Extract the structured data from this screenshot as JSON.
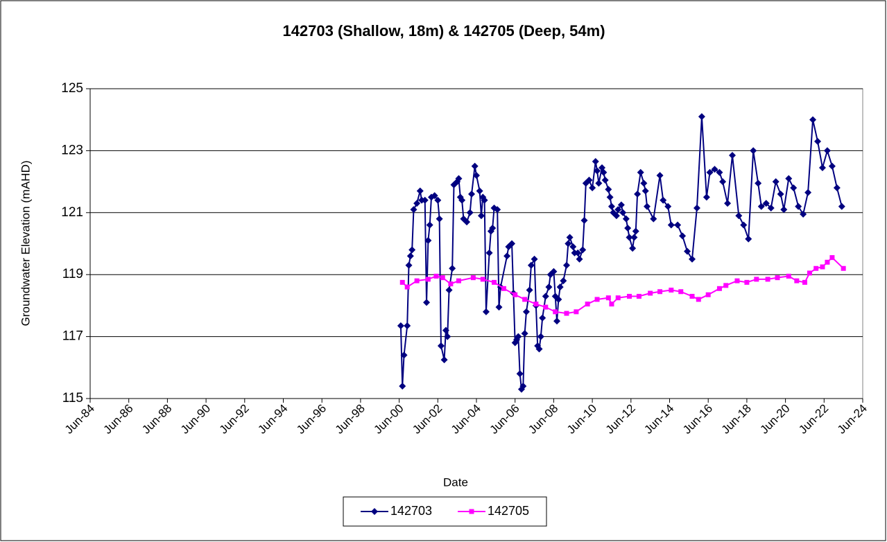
{
  "chart_data": {
    "type": "line",
    "title": "142703 (Shallow, 18m) & 142705 (Deep, 54m)",
    "x_label": "Date",
    "y_label": "Groundwater Elevation (mAHD)",
    "xlim": [
      "1984-06",
      "2024-06"
    ],
    "xticks": [
      {
        "value": "1984-06",
        "label": "Jun-84"
      },
      {
        "value": "1986-06",
        "label": "Jun-86"
      },
      {
        "value": "1988-06",
        "label": "Jun-88"
      },
      {
        "value": "1990-06",
        "label": "Jun-90"
      },
      {
        "value": "1992-06",
        "label": "Jun-92"
      },
      {
        "value": "1994-06",
        "label": "Jun-94"
      },
      {
        "value": "1996-06",
        "label": "Jun-96"
      },
      {
        "value": "1998-06",
        "label": "Jun-98"
      },
      {
        "value": "2000-06",
        "label": "Jun-00"
      },
      {
        "value": "2002-06",
        "label": "Jun-02"
      },
      {
        "value": "2004-06",
        "label": "Jun-04"
      },
      {
        "value": "2006-06",
        "label": "Jun-06"
      },
      {
        "value": "2008-06",
        "label": "Jun-08"
      },
      {
        "value": "2010-06",
        "label": "Jun-10"
      },
      {
        "value": "2012-06",
        "label": "Jun-12"
      },
      {
        "value": "2014-06",
        "label": "Jun-14"
      },
      {
        "value": "2016-06",
        "label": "Jun-16"
      },
      {
        "value": "2018-06",
        "label": "Jun-18"
      },
      {
        "value": "2020-06",
        "label": "Jun-20"
      },
      {
        "value": "2022-06",
        "label": "Jun-22"
      },
      {
        "value": "2024-06",
        "label": "Jun-24"
      }
    ],
    "ylim": [
      115,
      125
    ],
    "yticks": [
      115,
      117,
      119,
      121,
      123,
      125
    ],
    "grid": true,
    "legend": "bottom",
    "series": [
      {
        "name": "142703",
        "color": "#000080",
        "marker": "diamond",
        "x": [
          "2000-07",
          "2000-08",
          "2000-09",
          "2000-11",
          "2000-12",
          "2001-01",
          "2001-02",
          "2001-03",
          "2001-05",
          "2001-07",
          "2001-08",
          "2001-10",
          "2001-11",
          "2001-12",
          "2002-01",
          "2002-02",
          "2002-04",
          "2002-06",
          "2002-07",
          "2002-08",
          "2002-10",
          "2002-11",
          "2002-12",
          "2003-01",
          "2003-03",
          "2003-04",
          "2003-06",
          "2003-07",
          "2003-08",
          "2003-09",
          "2003-10",
          "2003-12",
          "2004-02",
          "2004-03",
          "2004-05",
          "2004-06",
          "2004-08",
          "2004-09",
          "2004-10",
          "2004-11",
          "2004-12",
          "2005-02",
          "2005-03",
          "2005-04",
          "2005-05",
          "2005-07",
          "2005-08",
          "2005-09",
          "2006-01",
          "2006-02",
          "2006-04",
          "2006-05",
          "2006-06",
          "2006-07",
          "2006-08",
          "2006-09",
          "2006-10",
          "2006-11",
          "2006-12",
          "2007-01",
          "2007-03",
          "2007-04",
          "2007-06",
          "2007-07",
          "2007-08",
          "2007-09",
          "2007-10",
          "2007-11",
          "2008-01",
          "2008-03",
          "2008-04",
          "2008-06",
          "2008-07",
          "2008-08",
          "2008-09",
          "2008-10",
          "2008-12",
          "2009-02",
          "2009-03",
          "2009-04",
          "2009-06",
          "2009-07",
          "2009-09",
          "2009-10",
          "2009-12",
          "2010-01",
          "2010-02",
          "2010-04",
          "2010-06",
          "2010-08",
          "2010-09",
          "2010-10",
          "2010-12",
          "2011-01",
          "2011-02",
          "2011-04",
          "2011-05",
          "2011-06",
          "2011-07",
          "2011-09",
          "2011-10",
          "2011-12",
          "2012-01",
          "2012-03",
          "2012-04",
          "2012-05",
          "2012-07",
          "2012-08",
          "2012-09",
          "2012-10",
          "2012-12",
          "2013-02",
          "2013-03",
          "2013-04",
          "2013-08",
          "2013-12",
          "2014-02",
          "2014-05",
          "2014-07",
          "2014-11",
          "2015-02",
          "2015-05",
          "2015-08",
          "2015-11",
          "2016-02",
          "2016-05",
          "2016-07",
          "2016-10",
          "2017-01",
          "2017-03",
          "2017-06",
          "2017-09",
          "2018-01",
          "2018-04",
          "2018-07",
          "2018-10",
          "2019-01",
          "2019-03",
          "2019-06",
          "2019-09",
          "2019-12",
          "2020-03",
          "2020-05",
          "2020-08",
          "2020-11",
          "2021-02",
          "2021-05",
          "2021-08",
          "2021-11",
          "2022-02",
          "2022-05",
          "2022-08",
          "2022-11",
          "2023-02",
          "2023-05"
        ],
        "values": [
          117.35,
          115.4,
          116.4,
          117.35,
          119.3,
          119.6,
          119.8,
          121.1,
          121.3,
          121.7,
          121.4,
          121.4,
          118.1,
          120.1,
          120.6,
          121.5,
          121.55,
          121.4,
          120.8,
          116.7,
          116.25,
          117.2,
          117.0,
          118.5,
          119.2,
          121.9,
          122.0,
          122.1,
          121.5,
          121.4,
          120.8,
          120.7,
          121.0,
          121.6,
          122.5,
          122.2,
          121.7,
          120.9,
          121.5,
          121.4,
          117.8,
          119.7,
          120.4,
          120.5,
          121.15,
          121.1,
          117.95,
          118.6,
          119.6,
          119.9,
          120.0,
          118.4,
          116.8,
          116.9,
          117.0,
          115.8,
          115.3,
          115.4,
          117.1,
          117.8,
          118.5,
          119.3,
          119.5,
          118.0,
          116.7,
          116.6,
          117.0,
          117.6,
          118.3,
          118.6,
          119.0,
          119.1,
          118.3,
          117.5,
          118.2,
          118.6,
          118.8,
          119.3,
          120.0,
          120.2,
          119.9,
          119.7,
          119.7,
          119.5,
          119.8,
          120.75,
          121.95,
          122.05,
          121.8,
          122.65,
          122.35,
          121.95,
          122.45,
          122.3,
          122.05,
          121.75,
          121.5,
          121.2,
          121.0,
          120.9,
          121.1,
          121.25,
          121.0,
          120.8,
          120.5,
          120.2,
          119.85,
          120.2,
          120.4,
          121.6,
          122.3,
          121.95,
          121.7,
          121.2,
          120.8,
          122.2,
          121.4,
          121.2,
          120.6,
          120.6,
          120.25,
          119.75,
          119.5,
          121.15,
          124.1,
          121.5,
          122.3,
          122.4,
          122.3,
          122.0,
          121.3,
          122.85,
          120.9,
          120.6,
          120.15,
          123.0,
          121.95,
          121.2,
          121.3,
          121.15,
          122.0,
          121.6,
          121.1,
          122.1,
          121.8,
          121.2,
          120.95,
          121.65,
          124.0,
          123.3,
          122.45,
          123.0,
          122.5,
          121.8,
          121.2
        ]
      },
      {
        "name": "142705",
        "color": "#ff00ff",
        "marker": "square",
        "x": [
          "2000-08",
          "2000-11",
          "2001-05",
          "2001-12",
          "2002-05",
          "2002-09",
          "2003-02",
          "2003-07",
          "2004-04",
          "2004-10",
          "2005-05",
          "2005-11",
          "2006-06",
          "2006-12",
          "2007-07",
          "2008-01",
          "2008-07",
          "2009-02",
          "2009-08",
          "2010-03",
          "2010-09",
          "2011-04",
          "2011-06",
          "2011-10",
          "2012-05",
          "2012-11",
          "2013-06",
          "2013-12",
          "2014-07",
          "2015-01",
          "2015-08",
          "2015-12",
          "2016-06",
          "2017-01",
          "2017-05",
          "2017-12",
          "2018-06",
          "2018-12",
          "2019-07",
          "2020-01",
          "2020-08",
          "2021-01",
          "2021-06",
          "2021-09",
          "2022-01",
          "2022-05",
          "2022-08",
          "2022-11",
          "2023-06"
        ],
        "values": [
          118.75,
          118.6,
          118.8,
          118.85,
          118.95,
          118.9,
          118.7,
          118.8,
          118.9,
          118.85,
          118.75,
          118.55,
          118.35,
          118.2,
          118.05,
          117.95,
          117.8,
          117.75,
          117.8,
          118.05,
          118.2,
          118.25,
          118.05,
          118.25,
          118.3,
          118.3,
          118.4,
          118.45,
          118.5,
          118.45,
          118.3,
          118.2,
          118.35,
          118.55,
          118.65,
          118.8,
          118.75,
          118.85,
          118.85,
          118.9,
          118.95,
          118.8,
          118.75,
          119.05,
          119.2,
          119.25,
          119.4,
          119.55,
          119.2
        ]
      }
    ]
  }
}
